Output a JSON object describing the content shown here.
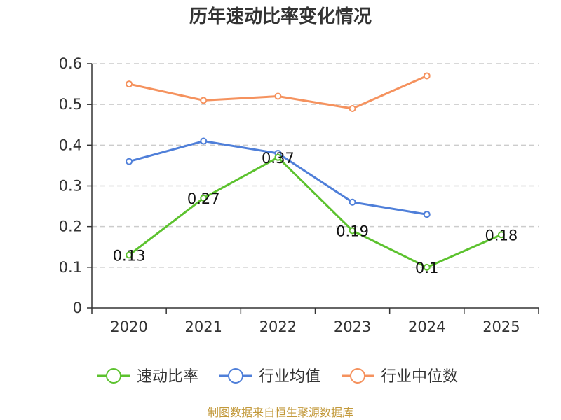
{
  "chart_data": {
    "type": "line",
    "title": "历年速动比率变化情况",
    "xlabel": "",
    "ylabel": "",
    "categories": [
      "2020",
      "2021",
      "2022",
      "2023",
      "2024",
      "2025"
    ],
    "y_ticks": [
      "0",
      "0.1",
      "0.2",
      "0.3",
      "0.4",
      "0.5",
      "0.6"
    ],
    "ylim": [
      0,
      0.6
    ],
    "grid": true,
    "legend_position": "bottom",
    "series": [
      {
        "name": "速动比率",
        "color": "#5cc22e",
        "values": [
          0.13,
          0.27,
          0.37,
          0.19,
          0.1,
          0.18
        ],
        "labels": [
          "0.13",
          "0.27",
          "0.37",
          "0.19",
          "0.1",
          "0.18"
        ],
        "show_labels": true
      },
      {
        "name": "行业均值",
        "color": "#4f7fd9",
        "values": [
          0.36,
          0.41,
          0.38,
          0.26,
          0.23,
          null
        ],
        "show_labels": false
      },
      {
        "name": "行业中位数",
        "color": "#f5925e",
        "values": [
          0.55,
          0.51,
          0.52,
          0.49,
          0.57,
          null
        ],
        "show_labels": false
      }
    ]
  },
  "source": {
    "text": "制图数据来自恒生聚源数据库",
    "color": "#c39a3c"
  }
}
